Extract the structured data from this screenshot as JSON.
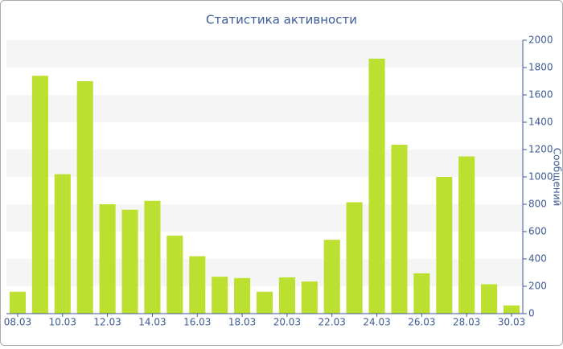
{
  "chart_data": {
    "type": "bar",
    "title": "Статистика активности",
    "y_label": "Сообщений",
    "categories": [
      "08.03",
      null,
      "10.03",
      null,
      "12.03",
      null,
      "14.03",
      null,
      "16.03",
      null,
      "18.03",
      null,
      "20.03",
      null,
      "22.03",
      null,
      "24.03",
      null,
      "26.03",
      null,
      "28.03",
      null,
      "30.03"
    ],
    "values": [
      160,
      1740,
      1020,
      1700,
      800,
      760,
      825,
      570,
      420,
      270,
      260,
      160,
      265,
      235,
      540,
      815,
      1865,
      1235,
      295,
      1000,
      1150,
      215,
      60
    ],
    "color": "#bce02f",
    "ylim": [
      0,
      2000
    ],
    "yticks": [
      0,
      200,
      400,
      600,
      800,
      1000,
      1200,
      1400,
      1600,
      1800,
      2000
    ],
    "grid": true,
    "y_axis_side": "right"
  }
}
